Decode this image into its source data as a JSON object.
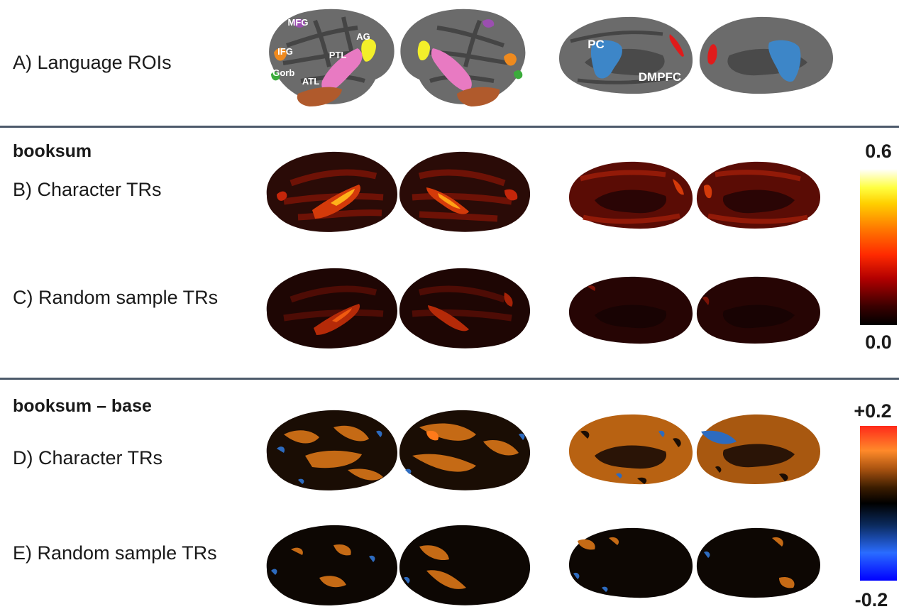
{
  "roi_row": {
    "label": "A) Language ROIs",
    "lateral_labels": {
      "mfg": "MFG",
      "ag": "AG",
      "ifg": "IFG",
      "ptl": "PTL",
      "ifgorb": "IFGorb",
      "atl": "ATL"
    },
    "medial_labels": {
      "pc": "PC",
      "dmpfc": "DMPFC"
    },
    "colors": {
      "mfg": "#9b4fb0",
      "ag": "#f3ef2a",
      "ifg": "#ef8a1e",
      "ptl": "#e87ac2",
      "ifgorb": "#3bab3b",
      "atl": "#b05a2c",
      "pc": "#3d86c8",
      "dmpfc_sig": "#e01b1b",
      "cortex": "#6b6b6b",
      "sulci": "#3f3f3f"
    }
  },
  "section_booksum": {
    "title": "booksum",
    "rows": [
      {
        "label": "B) Character TRs"
      },
      {
        "label": "C) Random sample TRs"
      }
    ],
    "colorbar": {
      "max_label": "0.6",
      "min_label": "0.0",
      "colormap": "hot"
    }
  },
  "section_diff": {
    "title": "booksum – base",
    "rows": [
      {
        "label": "D) Character TRs"
      },
      {
        "label": "E) Random sample TRs"
      }
    ],
    "colorbar": {
      "max_label": "+0.2",
      "min_label": "-0.2",
      "colormap": "diverging blue-black-red"
    }
  }
}
